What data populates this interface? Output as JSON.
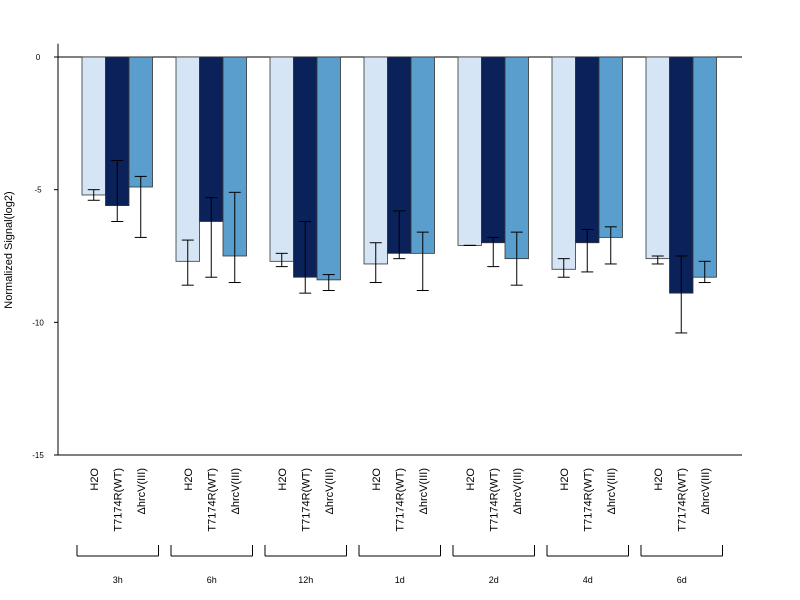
{
  "chart_data": {
    "type": "bar",
    "ylabel": "Normalized Signal(log2)",
    "ylim": [
      -15,
      0.5
    ],
    "yticks": [
      0,
      -5,
      -10,
      -15
    ],
    "series_labels": [
      "H2O",
      "T7174R(WT)",
      "ΔhrcV(III)"
    ],
    "colors": [
      "#d6e5f5",
      "#0b2159",
      "#5a9ecd"
    ],
    "groups": [
      {
        "label": "3h",
        "values": [
          -5.2,
          -5.6,
          -4.9
        ],
        "errors": [
          [
            -5.4,
            -5.0
          ],
          [
            -6.2,
            -3.9
          ],
          [
            -6.8,
            -4.5
          ]
        ]
      },
      {
        "label": "6h",
        "values": [
          -7.7,
          -6.2,
          -7.5
        ],
        "errors": [
          [
            -8.6,
            -6.9
          ],
          [
            -8.3,
            -5.3
          ],
          [
            -8.5,
            -5.1
          ]
        ]
      },
      {
        "label": "12h",
        "values": [
          -7.7,
          -8.3,
          -8.4
        ],
        "errors": [
          [
            -7.9,
            -7.4
          ],
          [
            -8.9,
            -6.2
          ],
          [
            -8.8,
            -8.2
          ]
        ]
      },
      {
        "label": "1d",
        "values": [
          -7.8,
          -7.4,
          -7.4
        ],
        "errors": [
          [
            -8.5,
            -7.0
          ],
          [
            -7.6,
            -5.8
          ],
          [
            -8.8,
            -6.6
          ]
        ]
      },
      {
        "label": "2d",
        "values": [
          -7.1,
          -7.0,
          -7.6
        ],
        "errors": [
          [
            -7.1,
            -7.1
          ],
          [
            -7.9,
            -6.8
          ],
          [
            -8.6,
            -6.6
          ]
        ]
      },
      {
        "label": "4d",
        "values": [
          -8.0,
          -7.0,
          -6.8
        ],
        "errors": [
          [
            -8.3,
            -7.6
          ],
          [
            -8.1,
            -6.5
          ],
          [
            -7.8,
            -6.4
          ]
        ]
      },
      {
        "label": "6d",
        "values": [
          -7.6,
          -8.9,
          -8.3
        ],
        "errors": [
          [
            -7.8,
            -7.5
          ],
          [
            -10.4,
            -7.5
          ],
          [
            -8.5,
            -7.7
          ]
        ]
      }
    ]
  }
}
